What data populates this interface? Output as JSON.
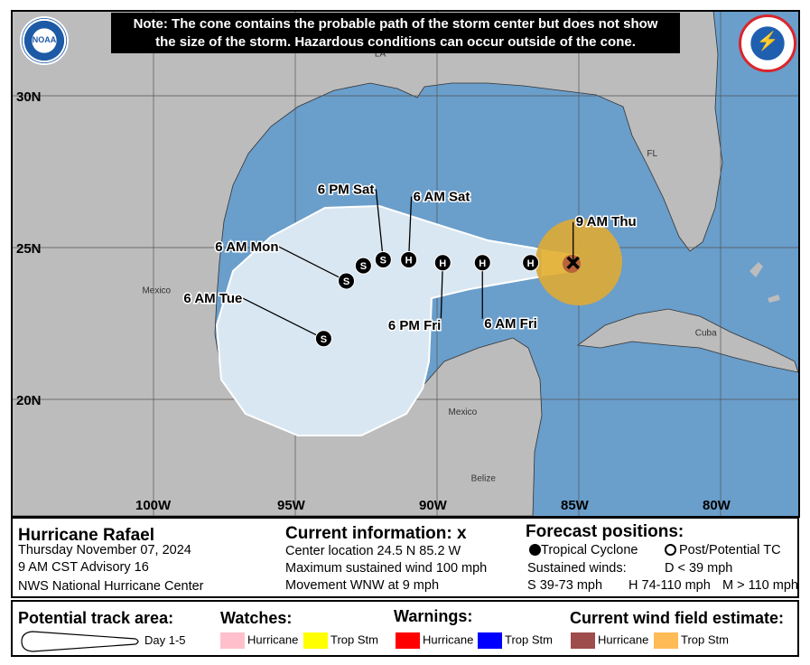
{
  "note": {
    "line1": "Note: The cone contains the probable path of the storm center but does not show",
    "line2": "the size of the storm. Hazardous conditions can occur outside of the cone."
  },
  "logos": {
    "left": "NOAA",
    "right": "NATIONAL WEATHER SERVICE"
  },
  "colors": {
    "water": "#6a9ecb",
    "land": "#bcbcbc",
    "cone": "#d9e7f2",
    "ts_wind": "#d9aa3c",
    "hur_wind": "#b8643a",
    "grid": "#555555"
  },
  "map": {
    "lat_labels": [
      {
        "text": "30N",
        "lat": 30
      },
      {
        "text": "25N",
        "lat": 25
      },
      {
        "text": "20N",
        "lat": 20
      }
    ],
    "lon_labels": [
      {
        "text": "100W",
        "lon": -100
      },
      {
        "text": "95W",
        "lon": -95
      },
      {
        "text": "90W",
        "lon": -90
      },
      {
        "text": "85W",
        "lon": -85
      },
      {
        "text": "80W",
        "lon": -80
      }
    ],
    "place_labels": [
      {
        "text": "LA",
        "lat": 31.3,
        "lon": -92.2
      },
      {
        "text": "FL",
        "lat": 28.0,
        "lon": -82.6
      },
      {
        "text": "Mexico",
        "lat": 23.5,
        "lon": -100.4
      },
      {
        "text": "Cuba",
        "lat": 22.1,
        "lon": -80.9
      },
      {
        "text": "Mexico",
        "lat": 19.5,
        "lon": -89.6
      },
      {
        "text": "Belize",
        "lat": 17.3,
        "lon": -88.8
      }
    ],
    "current": {
      "label": "9 AM Thu",
      "lat": 24.5,
      "lon": -85.2
    },
    "forecast_points": [
      {
        "type": "H",
        "lat": 24.5,
        "lon": -86.7,
        "label": ""
      },
      {
        "type": "H",
        "lat": 24.5,
        "lon": -88.4,
        "label": "6 AM Fri"
      },
      {
        "type": "H",
        "lat": 24.5,
        "lon": -89.8,
        "label": "6 PM Fri"
      },
      {
        "type": "H",
        "lat": 24.6,
        "lon": -91.0,
        "label": "6 AM Sat"
      },
      {
        "type": "S",
        "lat": 24.6,
        "lon": -91.9,
        "label": "6 PM Sat"
      },
      {
        "type": "S",
        "lat": 24.4,
        "lon": -92.6,
        "label": ""
      },
      {
        "type": "S",
        "lat": 23.9,
        "lon": -93.2,
        "label": "6 AM Mon"
      },
      {
        "type": "S",
        "lat": 22.0,
        "lon": -94.0,
        "label": "6 AM Tue"
      }
    ]
  },
  "storm": {
    "name": "Hurricane Rafael",
    "date": "Thursday November 07, 2024",
    "advisory": "9 AM CST Advisory 16",
    "center": "NWS National Hurricane Center"
  },
  "current_info": {
    "title": "Current information:",
    "symbol": "x",
    "location": "Center location 24.5 N 85.2 W",
    "wind": "Maximum sustained wind 100 mph",
    "movement": "Movement WNW at 9 mph"
  },
  "forecast_legend": {
    "title": "Forecast positions:",
    "tc": "Tropical Cyclone",
    "ptc": "Post/Potential TC",
    "sustained": "Sustained winds:",
    "d": "D < 39 mph",
    "s": "S 39-73 mph",
    "h": "H 74-110 mph",
    "m": "M > 110 mph"
  },
  "legend2": {
    "track_title": "Potential track area:",
    "track_day": "Day 1-5",
    "watches_title": "Watches:",
    "watches": [
      {
        "label": "Hurricane",
        "color": "#ffc0cb"
      },
      {
        "label": "Trop Stm",
        "color": "#ffff00"
      }
    ],
    "warnings_title": "Warnings:",
    "warnings": [
      {
        "label": "Hurricane",
        "color": "#ff0000"
      },
      {
        "label": "Trop Stm",
        "color": "#0000ff"
      }
    ],
    "wind_title": "Current wind field estimate:",
    "wind": [
      {
        "label": "Hurricane",
        "color": "#9e4c4c"
      },
      {
        "label": "Trop Stm",
        "color": "#ffbb55"
      }
    ]
  }
}
